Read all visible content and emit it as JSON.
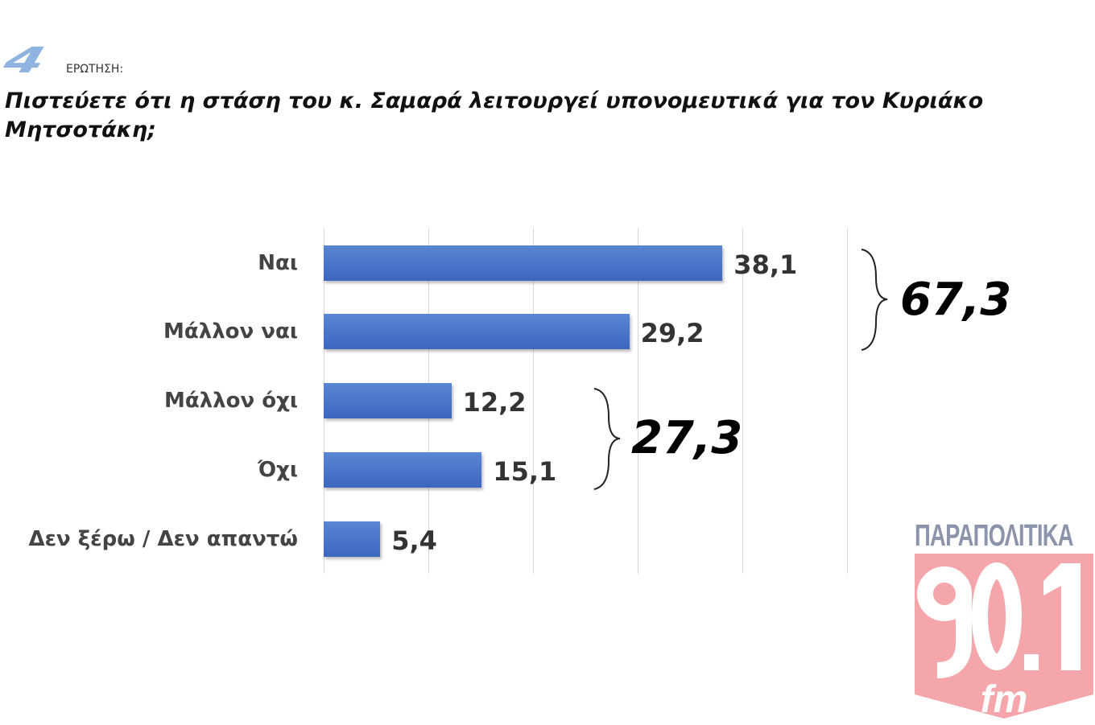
{
  "header": {
    "question_number": "4",
    "question_label": "ΕΡΩΤΗΣΗ:",
    "question": "Πιστεύετε ότι η στάση του κ. Σαμαρά λειτουργεί υπονομευτικά για τον Κυριάκο Μητσοτάκη;"
  },
  "chart_data": {
    "type": "bar",
    "orientation": "horizontal",
    "title": "Πιστεύετε ότι η στάση του κ. Σαμαρά λειτουργεί υπονομευτικά για τον Κυριάκο Μητσοτάκη;",
    "categories": [
      "Ναι",
      "Μάλλον ναι",
      "Μάλλον όχι",
      "Όχι",
      "Δεν ξέρω / Δεν απαντώ"
    ],
    "values": [
      38.1,
      29.2,
      12.2,
      15.1,
      5.4
    ],
    "value_labels": [
      "38,1",
      "29,2",
      "12,2",
      "15,1",
      "5,4"
    ],
    "xlim": [
      0,
      50
    ],
    "grid": true,
    "bar_color": "#4472C4",
    "annotations": [
      {
        "text": "67,3",
        "groups": [
          "Ναι",
          "Μάλλον ναι"
        ]
      },
      {
        "text": "27,3",
        "groups": [
          "Μάλλον όχι",
          "Όχι"
        ]
      }
    ]
  },
  "logo": {
    "top_text": "ΠΑΡΑΠΟΛΙΤΙΚΑ",
    "number": "90.1",
    "suffix": "fm",
    "color": "#f4a6ab"
  }
}
